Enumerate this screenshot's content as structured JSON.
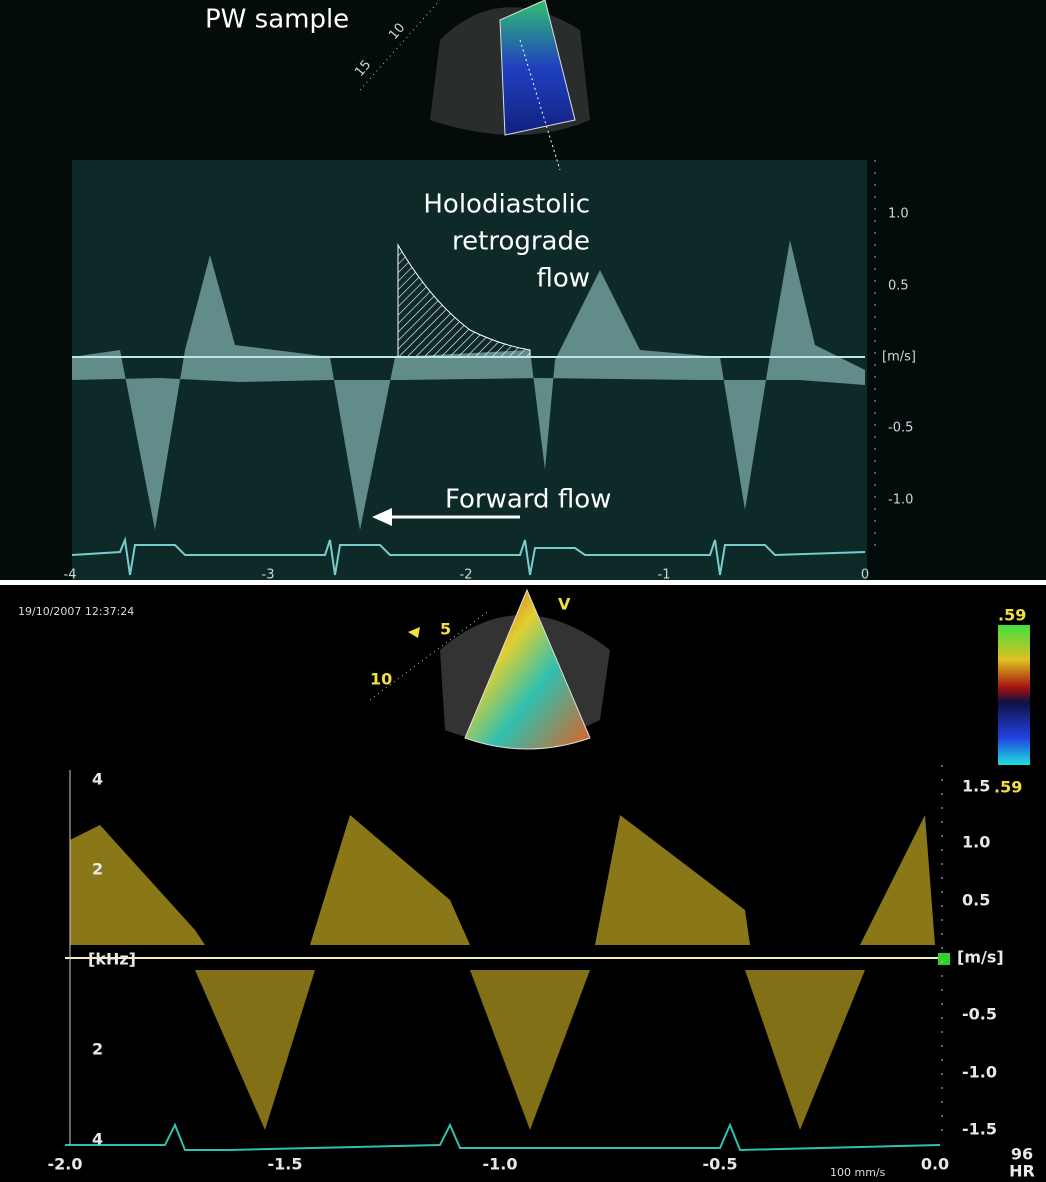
{
  "top_panel": {
    "label": "PW sample",
    "depth_marks": [
      "10",
      "15"
    ],
    "annotation": [
      "Holodiastolic",
      "retrograde",
      "flow"
    ],
    "forward_label": "Forward flow",
    "velocity_ticks": [
      "1.0",
      "0.5",
      "[m/s]",
      "-0.5",
      "-1.0"
    ],
    "time_ticks": [
      "-4",
      "-3",
      "-2",
      "-1",
      "0"
    ]
  },
  "bottom_panel": {
    "timestamp": "19/10/2007 12:37:24",
    "depth_marks": [
      "5",
      "10"
    ],
    "mode": "V",
    "color_scale": {
      "top": ".59",
      "bottom": ".59"
    },
    "frequency_ticks": [
      "4",
      "2",
      "[kHz]",
      "2",
      "4"
    ],
    "velocity_ticks": [
      "1.5",
      "1.0",
      "0.5",
      "[m/s]",
      "-0.5",
      "-1.0",
      "-1.5"
    ],
    "time_ticks": [
      "-2.0",
      "-1.5",
      "-1.0",
      "-0.5",
      "0.0"
    ],
    "sweep_speed": "100 mm/s",
    "heart_rate": {
      "value": "96",
      "label": "HR"
    }
  }
}
